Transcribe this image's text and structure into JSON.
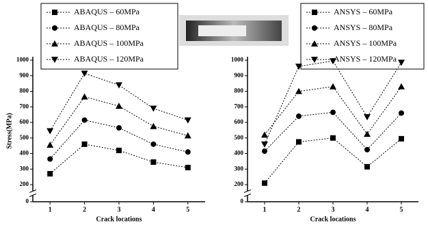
{
  "chart_data": [
    {
      "type": "line",
      "x_label": "Crack locations",
      "y_label": "Stress(MPa)",
      "categories": [
        "1",
        "2",
        "3",
        "4",
        "5"
      ],
      "ylim": [
        0,
        1000
      ],
      "y_break": [
        0,
        200
      ],
      "yticks": [
        0,
        200,
        300,
        400,
        500,
        600,
        700,
        800,
        900,
        1000
      ],
      "series": [
        {
          "name": "ABAQUS – 60MPa",
          "color": "#000000",
          "marker": "square",
          "values": [
            270,
            460,
            420,
            345,
            310
          ]
        },
        {
          "name": "ABAQUS – 80MPa",
          "color": "#000000",
          "marker": "circle",
          "values": [
            365,
            615,
            565,
            460,
            410
          ]
        },
        {
          "name": "ABAQUS – 100MPa",
          "color": "#000000",
          "marker": "triangle-up",
          "values": [
            455,
            765,
            705,
            575,
            515
          ]
        },
        {
          "name": "ABAQUS – 120MPa",
          "color": "#000000",
          "marker": "triangle-down",
          "values": [
            545,
            915,
            840,
            690,
            615
          ]
        }
      ]
    },
    {
      "type": "line",
      "x_label": "Crack locations",
      "categories": [
        "1",
        "2",
        "3",
        "4",
        "5"
      ],
      "ylim": [
        0,
        1000
      ],
      "y_break": [
        0,
        200
      ],
      "yticks": [
        0,
        200,
        300,
        400,
        500,
        600,
        700,
        800,
        900,
        1000
      ],
      "series": [
        {
          "name": "ANSYS – 60MPa",
          "color": "#000000",
          "marker": "square",
          "values": [
            210,
            475,
            500,
            315,
            495
          ]
        },
        {
          "name": "ANSYS – 80MPa",
          "color": "#000000",
          "marker": "circle",
          "values": [
            415,
            640,
            665,
            425,
            660
          ]
        },
        {
          "name": "ANSYS – 100MPa",
          "color": "#000000",
          "marker": "triangle-up",
          "values": [
            520,
            800,
            830,
            525,
            830
          ]
        },
        {
          "name": "ANSYS – 120MPa",
          "color": "#000000",
          "marker": "triangle-down",
          "values": [
            460,
            960,
            995,
            635,
            985
          ]
        }
      ]
    }
  ]
}
